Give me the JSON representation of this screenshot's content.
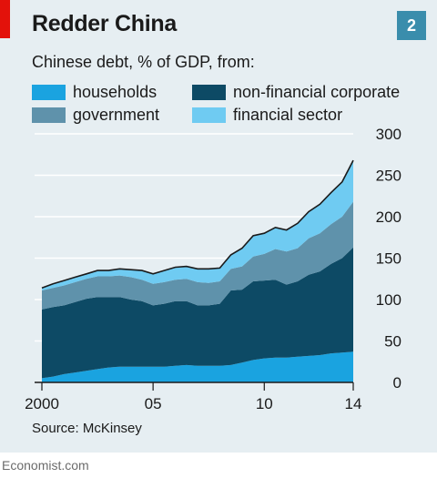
{
  "header": {
    "title": "Redder China",
    "badge": "2",
    "subtitle": "Chinese debt, % of GDP, from:"
  },
  "footer": {
    "source": "Source: McKinsey",
    "wordmark": "Economist.com"
  },
  "colors": {
    "households": "#1aa3e0",
    "non_financial_corporate": "#0d4a65",
    "government": "#5f92ab",
    "financial_sector": "#6fcbf2",
    "total_line": "#1a1a1a",
    "accent": "#e3120b",
    "badge": "#3a8dac",
    "background": "#e6eef2"
  },
  "chart_data": {
    "type": "area",
    "title": "Redder China",
    "subtitle": "Chinese debt, % of GDP, from:",
    "stacked": true,
    "x_tick_labels": [
      "2000",
      "05",
      "10",
      "14"
    ],
    "x_tick_values": [
      2000,
      2005,
      2010,
      2014
    ],
    "xlim": [
      2000,
      2014
    ],
    "ylim": [
      0,
      300
    ],
    "y_ticks": [
      0,
      50,
      100,
      150,
      200,
      250,
      300
    ],
    "y_axis_side": "right",
    "grid": true,
    "legend_position": "top",
    "x": [
      2000,
      2000.5,
      2001,
      2001.5,
      2002,
      2002.5,
      2003,
      2003.5,
      2004,
      2004.5,
      2005,
      2005.5,
      2006,
      2006.5,
      2007,
      2007.5,
      2008,
      2008.5,
      2009,
      2009.5,
      2010,
      2010.5,
      2011,
      2011.5,
      2012,
      2012.5,
      2013,
      2013.5,
      2014
    ],
    "series": [
      {
        "name": "households",
        "values": [
          5,
          7,
          10,
          12,
          14,
          16,
          18,
          19,
          19,
          19,
          19,
          19,
          20,
          21,
          20,
          20,
          20,
          21,
          24,
          27,
          29,
          30,
          30,
          31,
          32,
          33,
          35,
          36,
          37
        ]
      },
      {
        "name": "non-financial corporate",
        "values": [
          83,
          84,
          83,
          85,
          87,
          87,
          85,
          84,
          81,
          79,
          74,
          76,
          78,
          77,
          73,
          73,
          75,
          90,
          88,
          95,
          94,
          94,
          88,
          91,
          98,
          101,
          108,
          114,
          126
        ]
      },
      {
        "name": "government",
        "values": [
          23,
          23,
          24,
          24,
          24,
          25,
          25,
          26,
          27,
          26,
          26,
          26,
          26,
          27,
          28,
          27,
          27,
          26,
          28,
          30,
          32,
          37,
          40,
          40,
          44,
          46,
          48,
          50,
          55
        ]
      },
      {
        "name": "financial sector",
        "values": [
          3,
          5,
          6,
          6,
          6,
          7,
          7,
          8,
          9,
          11,
          12,
          14,
          15,
          15,
          16,
          17,
          16,
          17,
          22,
          25,
          25,
          26,
          26,
          30,
          32,
          35,
          38,
          42,
          50
        ]
      }
    ]
  },
  "legend": [
    {
      "key": "households",
      "label": "households"
    },
    {
      "key": "non_financial_corporate",
      "label": "non-financial corporate"
    },
    {
      "key": "government",
      "label": "government"
    },
    {
      "key": "financial_sector",
      "label": "financial sector"
    }
  ]
}
